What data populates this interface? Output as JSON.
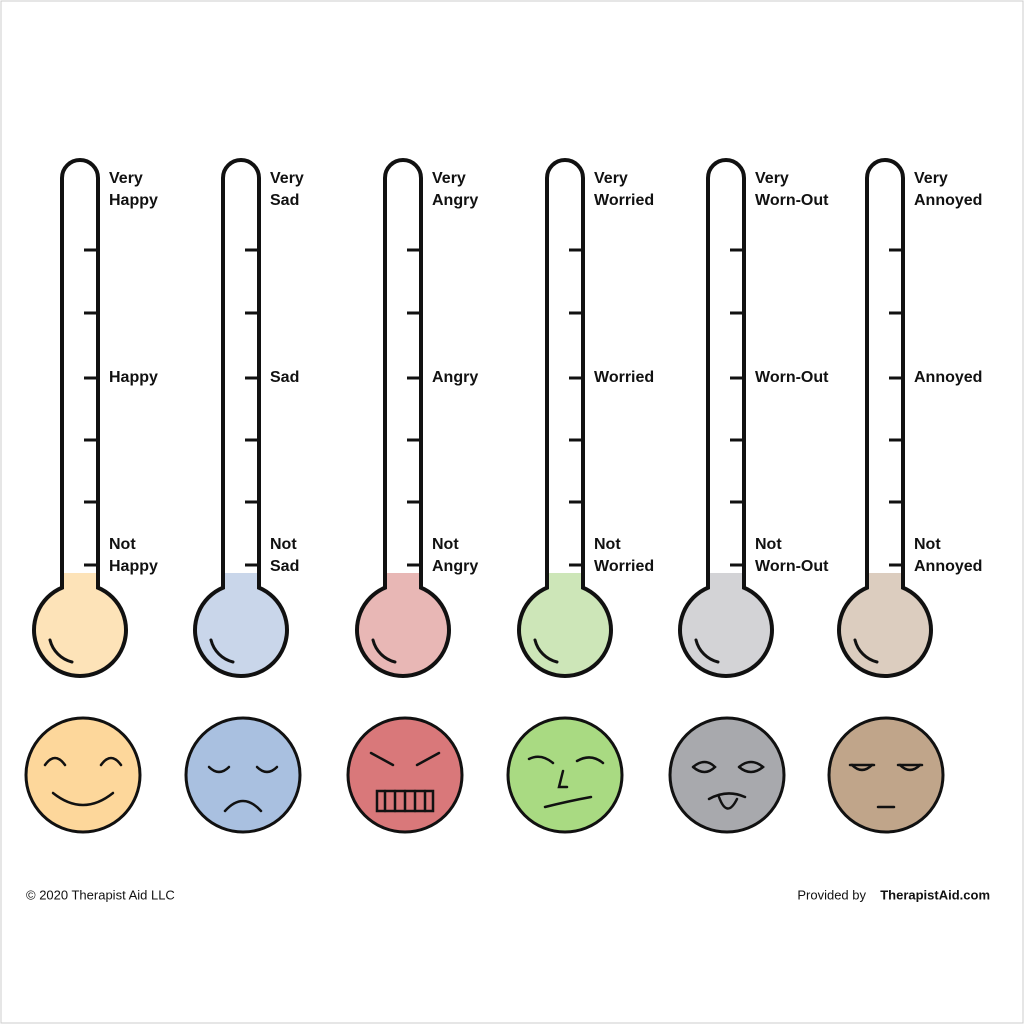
{
  "thermometers": [
    {
      "top": [
        "Very",
        "Happy"
      ],
      "middle": "Happy",
      "bottom": [
        "Not",
        "Happy"
      ],
      "fill": "#fde3b8",
      "face": "#fdd79b"
    },
    {
      "top": [
        "Very",
        "Sad"
      ],
      "middle": "Sad",
      "bottom": [
        "Not",
        "Sad"
      ],
      "fill": "#c9d6ea",
      "face": "#a9c0e0"
    },
    {
      "top": [
        "Very",
        "Angry"
      ],
      "middle": "Angry",
      "bottom": [
        "Not",
        "Angry"
      ],
      "fill": "#e8b7b5",
      "face": "#d9787a"
    },
    {
      "top": [
        "Very",
        "Worried"
      ],
      "middle": "Worried",
      "bottom": [
        "Not",
        "Worried"
      ],
      "fill": "#cde6b8",
      "face": "#a9da82"
    },
    {
      "top": [
        "Very",
        "Worn-Out"
      ],
      "middle": "Worn-Out",
      "bottom": [
        "Not",
        "Worn-Out"
      ],
      "fill": "#d3d3d6",
      "face": "#a8a9ad"
    },
    {
      "top": [
        "Very",
        "Annoyed"
      ],
      "middle": "Annoyed",
      "bottom": [
        "Not",
        "Annoyed"
      ],
      "fill": "#dccdbf",
      "face": "#c0a58a"
    }
  ],
  "footer": {
    "copyright": "© 2020 Therapist Aid LLC",
    "provided": "Provided by",
    "site": "TherapistAid.com"
  }
}
